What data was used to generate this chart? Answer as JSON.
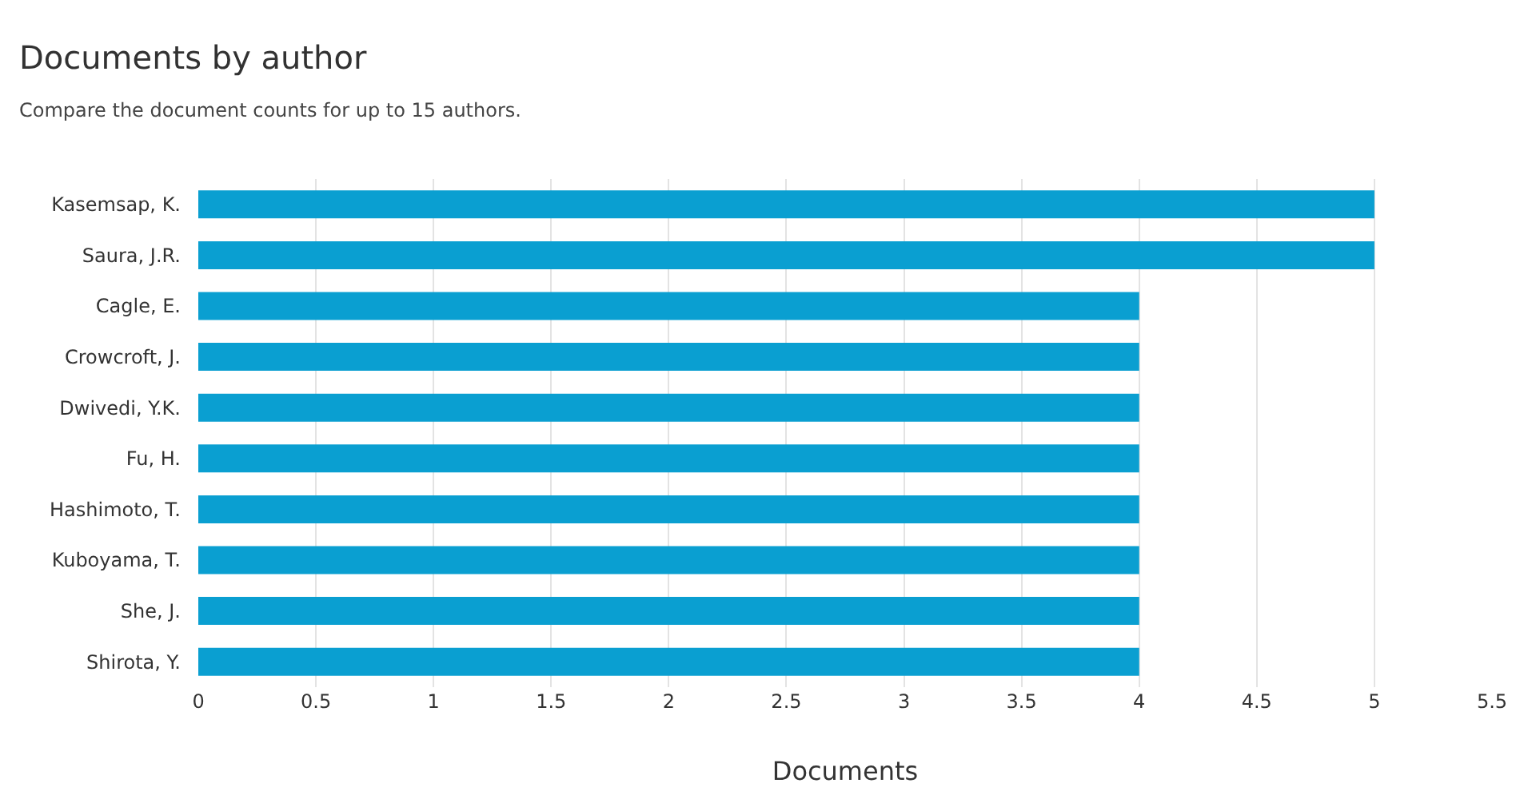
{
  "chart_data": {
    "type": "bar",
    "orientation": "horizontal",
    "title": "Documents by author",
    "subtitle": "Compare the document counts for up to 15 authors.",
    "xlabel": "Documents",
    "categories": [
      "Kasemsap, K.",
      "Saura, J.R.",
      "Cagle, E.",
      "Crowcroft, J.",
      "Dwivedi, Y.K.",
      "Fu, H.",
      "Hashimoto, T.",
      "Kuboyama, T.",
      "She, J.",
      "Shirota, Y."
    ],
    "values": [
      5,
      5,
      4,
      4,
      4,
      4,
      4,
      4,
      4,
      4
    ],
    "color": "#0a9fd1",
    "xlim": [
      0,
      5.5
    ],
    "xticks": [
      0,
      0.5,
      1,
      1.5,
      2,
      2.5,
      3,
      3.5,
      4,
      4.5,
      5,
      5.5
    ],
    "grid": "x"
  }
}
